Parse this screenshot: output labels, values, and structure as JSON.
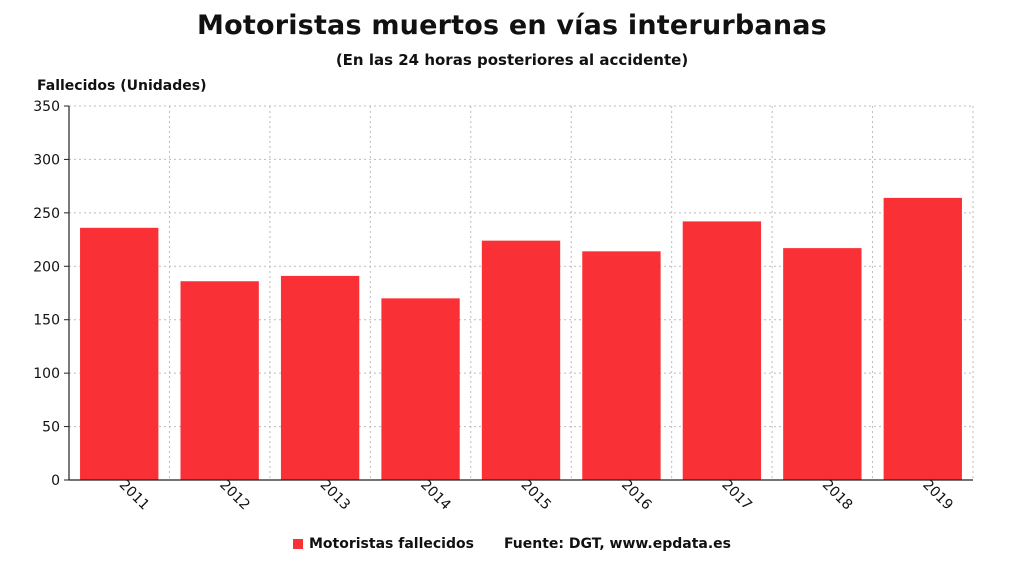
{
  "colors": {
    "bar": "#f93036",
    "grid": "#bcbcbc",
    "axis": "#222222"
  },
  "chart_data": {
    "type": "bar",
    "title": "Motoristas muertos en vías interurbanas",
    "subtitle": "(En las 24 horas posteriores al accidente)",
    "ylabel": "Fallecidos (Unidades)",
    "xlabel": "",
    "categories": [
      "2011",
      "2012",
      "2013",
      "2014",
      "2015",
      "2016",
      "2017",
      "2018",
      "2019"
    ],
    "series": [
      {
        "name": "Motoristas fallecidos",
        "values": [
          236,
          186,
          191,
          170,
          224,
          214,
          242,
          217,
          264
        ]
      }
    ],
    "ylim": [
      0,
      350
    ],
    "yticks": [
      "0",
      "50",
      "100",
      "150",
      "200",
      "250",
      "300",
      "350"
    ],
    "grid": true,
    "legend_position": "bottom",
    "source": "Fuente: DGT, www.epdata.es"
  }
}
